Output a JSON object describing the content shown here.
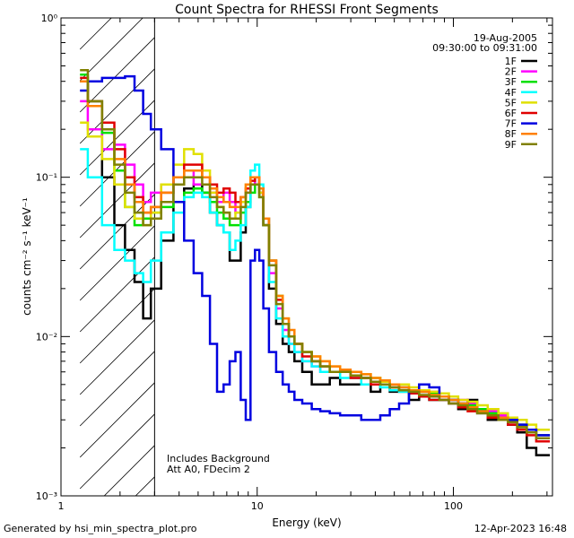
{
  "footer": {
    "generated": "Generated by hsi_min_spectra_plot.pro",
    "timestamp": "12-Apr-2023 16:48"
  },
  "colors": {
    "background": "#ffffff",
    "axis": "#000000"
  },
  "chart_data": {
    "type": "line",
    "title": "Count Spectra for RHESSI Front Segments",
    "xlabel": "Energy (keV)",
    "ylabel": "counts cm⁻² s⁻¹ keV⁻¹",
    "xscale": "log",
    "yscale": "log",
    "xlim": [
      1,
      320
    ],
    "ylim": [
      0.001,
      1
    ],
    "x_ticks": [
      {
        "value": 1,
        "label": "1"
      },
      {
        "value": 10,
        "label": "10"
      },
      {
        "value": 100,
        "label": "100"
      }
    ],
    "y_ticks": [
      {
        "value": 1,
        "label": "10⁰"
      },
      {
        "value": 0.1,
        "label": "10⁻¹"
      },
      {
        "value": 0.01,
        "label": "10⁻²"
      },
      {
        "value": 0.001,
        "label": "10⁻³"
      }
    ],
    "date": "19-Aug-2005",
    "time_range": "09:30:00 to 09:31:00",
    "annotations": [
      "Includes Background",
      "Att A0, FDecim 2"
    ],
    "hatched_region": {
      "x_from": 1.25,
      "x_to": 3.0,
      "style": "diagonal hatch, excluded low-energy region"
    },
    "x": [
      1.25,
      1.5,
      1.75,
      2.0,
      2.25,
      2.5,
      2.75,
      3.0,
      3.5,
      4.0,
      4.5,
      5.0,
      5.5,
      6.0,
      6.5,
      7.0,
      7.5,
      8.0,
      8.5,
      9.0,
      9.5,
      10.0,
      10.5,
      11.0,
      12.0,
      13.0,
      14.0,
      15.0,
      16.0,
      18.0,
      20.0,
      22.0,
      25.0,
      28.0,
      32.0,
      36.0,
      40.0,
      45.0,
      50.0,
      56.0,
      63.0,
      71.0,
      80.0,
      90.0,
      100.0,
      112.0,
      125.0,
      140.0,
      160.0,
      180.0,
      200.0,
      224.0,
      250.0,
      280.0
    ],
    "series": [
      {
        "name": "1F",
        "color": "#000000",
        "values": [
          0.4,
          0.3,
          0.1,
          0.05,
          0.035,
          0.022,
          0.013,
          0.02,
          0.04,
          0.07,
          0.085,
          0.09,
          0.08,
          0.06,
          0.05,
          0.045,
          0.03,
          0.03,
          0.045,
          0.065,
          0.09,
          0.1,
          0.08,
          0.05,
          0.02,
          0.012,
          0.009,
          0.008,
          0.007,
          0.006,
          0.005,
          0.005,
          0.0055,
          0.005,
          0.005,
          0.005,
          0.0045,
          0.005,
          0.0045,
          0.0045,
          0.004,
          0.0045,
          0.004,
          0.004,
          0.004,
          0.0035,
          0.004,
          0.0035,
          0.003,
          0.003,
          0.0028,
          0.0025,
          0.002,
          0.0018
        ]
      },
      {
        "name": "2F",
        "color": "#ff00ff",
        "values": [
          0.3,
          0.2,
          0.15,
          0.16,
          0.12,
          0.09,
          0.07,
          0.08,
          0.09,
          0.1,
          0.11,
          0.09,
          0.09,
          0.08,
          0.07,
          0.08,
          0.07,
          0.06,
          0.07,
          0.08,
          0.09,
          0.1,
          0.08,
          0.05,
          0.025,
          0.015,
          0.011,
          0.009,
          0.008,
          0.007,
          0.0065,
          0.006,
          0.006,
          0.006,
          0.0055,
          0.0055,
          0.005,
          0.005,
          0.005,
          0.0048,
          0.0045,
          0.0045,
          0.0045,
          0.004,
          0.004,
          0.004,
          0.0038,
          0.0035,
          0.0034,
          0.0032,
          0.003,
          0.0028,
          0.0026,
          0.0024
        ]
      },
      {
        "name": "3F",
        "color": "#00e000",
        "values": [
          0.44,
          0.3,
          0.19,
          0.11,
          0.065,
          0.05,
          0.055,
          0.06,
          0.065,
          0.07,
          0.08,
          0.085,
          0.08,
          0.07,
          0.06,
          0.055,
          0.05,
          0.05,
          0.06,
          0.07,
          0.08,
          0.09,
          0.075,
          0.05,
          0.03,
          0.018,
          0.012,
          0.01,
          0.009,
          0.008,
          0.007,
          0.0065,
          0.006,
          0.006,
          0.006,
          0.0055,
          0.0055,
          0.005,
          0.005,
          0.0048,
          0.0046,
          0.0045,
          0.0044,
          0.0042,
          0.004,
          0.0038,
          0.0037,
          0.0035,
          0.0033,
          0.0031,
          0.003,
          0.0028,
          0.0026,
          0.0024
        ]
      },
      {
        "name": "4F",
        "color": "#00ffff",
        "values": [
          0.15,
          0.1,
          0.05,
          0.035,
          0.03,
          0.025,
          0.022,
          0.03,
          0.045,
          0.06,
          0.075,
          0.08,
          0.075,
          0.06,
          0.05,
          0.045,
          0.035,
          0.04,
          0.05,
          0.065,
          0.11,
          0.12,
          0.09,
          0.055,
          0.022,
          0.013,
          0.01,
          0.009,
          0.008,
          0.007,
          0.0065,
          0.006,
          0.006,
          0.0055,
          0.0055,
          0.005,
          0.005,
          0.0048,
          0.0046,
          0.0045,
          0.0044,
          0.0042,
          0.004,
          0.004,
          0.0038,
          0.0036,
          0.0035,
          0.0033,
          0.0031,
          0.003,
          0.0029,
          0.0027,
          0.0025,
          0.0023
        ]
      },
      {
        "name": "5F",
        "color": "#e0e000",
        "values": [
          0.22,
          0.18,
          0.13,
          0.09,
          0.065,
          0.055,
          0.05,
          0.06,
          0.09,
          0.12,
          0.15,
          0.14,
          0.11,
          0.08,
          0.065,
          0.06,
          0.055,
          0.06,
          0.07,
          0.09,
          0.1,
          0.1,
          0.08,
          0.055,
          0.03,
          0.018,
          0.013,
          0.01,
          0.009,
          0.008,
          0.0075,
          0.007,
          0.0065,
          0.006,
          0.006,
          0.0058,
          0.0055,
          0.0052,
          0.005,
          0.005,
          0.0048,
          0.0046,
          0.0045,
          0.0044,
          0.0042,
          0.004,
          0.0039,
          0.0037,
          0.0035,
          0.0033,
          0.0031,
          0.003,
          0.0028,
          0.0026
        ]
      },
      {
        "name": "6F",
        "color": "#e00000",
        "values": [
          0.42,
          0.3,
          0.22,
          0.15,
          0.1,
          0.075,
          0.06,
          0.065,
          0.08,
          0.1,
          0.12,
          0.12,
          0.1,
          0.09,
          0.08,
          0.085,
          0.08,
          0.07,
          0.075,
          0.085,
          0.095,
          0.1,
          0.085,
          0.055,
          0.03,
          0.017,
          0.012,
          0.01,
          0.009,
          0.0075,
          0.007,
          0.0065,
          0.006,
          0.006,
          0.0055,
          0.0055,
          0.005,
          0.005,
          0.0048,
          0.0046,
          0.0044,
          0.0042,
          0.004,
          0.004,
          0.0038,
          0.0036,
          0.0034,
          0.0033,
          0.0031,
          0.003,
          0.0028,
          0.0026,
          0.0024,
          0.0022
        ]
      },
      {
        "name": "7F",
        "color": "#0000e0",
        "values": [
          0.35,
          0.4,
          0.42,
          0.42,
          0.43,
          0.35,
          0.25,
          0.2,
          0.15,
          0.07,
          0.04,
          0.025,
          0.018,
          0.009,
          0.0045,
          0.005,
          0.007,
          0.008,
          0.004,
          0.003,
          0.03,
          0.035,
          0.03,
          0.015,
          0.008,
          0.006,
          0.005,
          0.0045,
          0.004,
          0.0038,
          0.0035,
          0.0034,
          0.0033,
          0.0032,
          0.0032,
          0.003,
          0.003,
          0.0032,
          0.0035,
          0.0038,
          0.0045,
          0.005,
          0.0048,
          0.0042,
          0.004,
          0.0038,
          0.0036,
          0.0034,
          0.0032,
          0.0031,
          0.003,
          0.0028,
          0.0026,
          0.0024
        ]
      },
      {
        "name": "8F",
        "color": "#ff8000",
        "values": [
          0.4,
          0.28,
          0.2,
          0.13,
          0.09,
          0.07,
          0.06,
          0.065,
          0.08,
          0.1,
          0.11,
          0.11,
          0.1,
          0.085,
          0.075,
          0.07,
          0.065,
          0.065,
          0.075,
          0.09,
          0.1,
          0.1,
          0.085,
          0.055,
          0.03,
          0.018,
          0.013,
          0.011,
          0.009,
          0.008,
          0.0075,
          0.007,
          0.0065,
          0.0062,
          0.006,
          0.0058,
          0.0055,
          0.0053,
          0.005,
          0.0048,
          0.0046,
          0.0045,
          0.0043,
          0.0042,
          0.004,
          0.0038,
          0.0036,
          0.0034,
          0.0032,
          0.0031,
          0.0029,
          0.0027,
          0.0025,
          0.0023
        ]
      },
      {
        "name": "9F",
        "color": "#808000",
        "values": [
          0.47,
          0.3,
          0.2,
          0.12,
          0.08,
          0.06,
          0.05,
          0.055,
          0.07,
          0.09,
          0.1,
          0.1,
          0.09,
          0.075,
          0.065,
          0.06,
          0.055,
          0.055,
          0.065,
          0.08,
          0.09,
          0.09,
          0.075,
          0.05,
          0.028,
          0.016,
          0.012,
          0.01,
          0.009,
          0.008,
          0.007,
          0.0065,
          0.006,
          0.006,
          0.0057,
          0.0055,
          0.0052,
          0.005,
          0.0048,
          0.0046,
          0.0045,
          0.0043,
          0.0042,
          0.004,
          0.0038,
          0.0037,
          0.0035,
          0.0033,
          0.0032,
          0.003,
          0.0029,
          0.0027,
          0.0025,
          0.0023
        ]
      }
    ]
  }
}
